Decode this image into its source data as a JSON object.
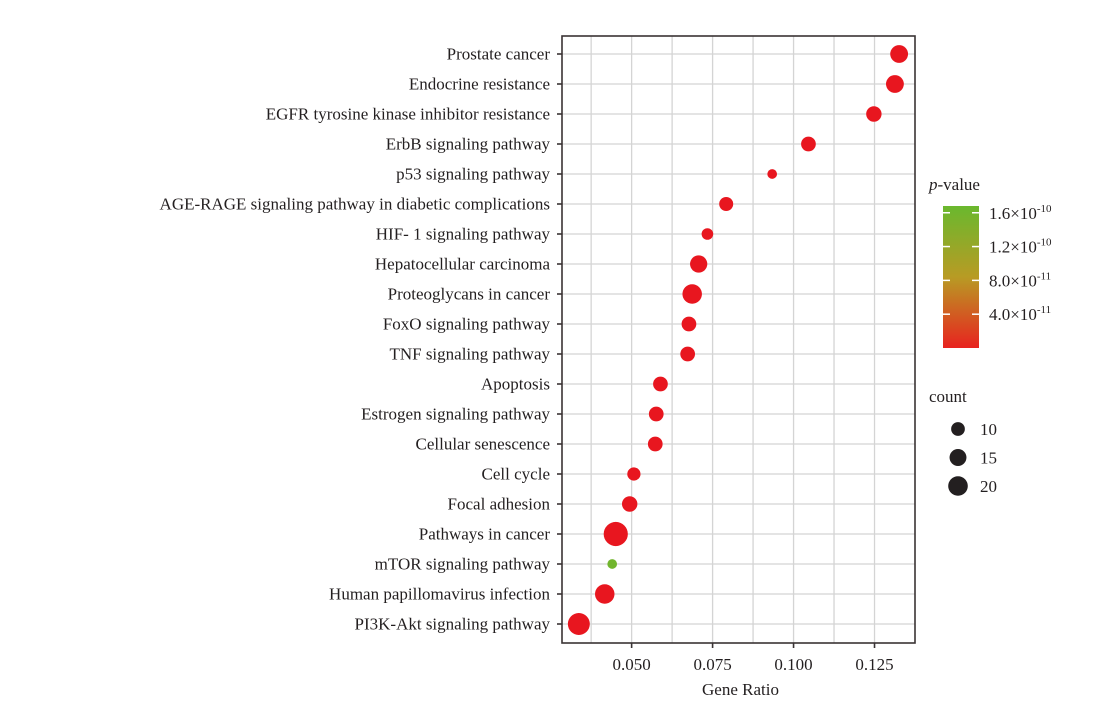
{
  "chart_data": {
    "type": "scatter",
    "subtype": "dot-plot",
    "title": "",
    "xlabel": "Gene Ratio",
    "ylabel": "",
    "xlim": [
      0.0285,
      0.1375
    ],
    "x_ticks": [
      0.05,
      0.075,
      0.1,
      0.125
    ],
    "x_tick_labels": [
      "0.050",
      "0.075",
      "0.100",
      "0.125"
    ],
    "x_minor_gridlines": [
      0.0375,
      0.0625,
      0.0875,
      0.1125
    ],
    "grid": true,
    "categories": [
      "Prostate cancer",
      "Endocrine resistance",
      "EGFR tyrosine kinase inhibitor resistance",
      "ErbB signaling pathway",
      "p53 signaling pathway",
      "AGE-RAGE signaling pathway in diabetic complications",
      "HIF- 1 signaling pathway",
      "Hepatocellular carcinoma",
      "Proteoglycans in cancer",
      "FoxO signaling pathway",
      "TNF signaling pathway",
      "Apoptosis",
      "Estrogen signaling pathway",
      "Cellular senescence",
      "Cell cycle",
      "Focal adhesion",
      "Pathways in cancer",
      "mTOR signaling pathway",
      "Human papillomavirus infection",
      "PI3K-Akt signaling pathway"
    ],
    "points": [
      {
        "term": "Prostate cancer",
        "gene_ratio": 0.1326,
        "count": 16,
        "p_value": 1e-13
      },
      {
        "term": "Endocrine resistance",
        "gene_ratio": 0.1313,
        "count": 16,
        "p_value": 1e-13
      },
      {
        "term": "EGFR tyrosine kinase inhibitor resistance",
        "gene_ratio": 0.1248,
        "count": 12,
        "p_value": 1e-13
      },
      {
        "term": "ErbB signaling pathway",
        "gene_ratio": 0.1046,
        "count": 11,
        "p_value": 1e-13
      },
      {
        "term": "p53 signaling pathway",
        "gene_ratio": 0.0934,
        "count": 5,
        "p_value": 1e-13
      },
      {
        "term": "AGE-RAGE signaling pathway in diabetic complications",
        "gene_ratio": 0.0792,
        "count": 10,
        "p_value": 1e-13
      },
      {
        "term": "HIF- 1 signaling pathway",
        "gene_ratio": 0.0734,
        "count": 7,
        "p_value": 1e-13
      },
      {
        "term": "Hepatocellular carcinoma",
        "gene_ratio": 0.0707,
        "count": 15,
        "p_value": 1e-13
      },
      {
        "term": "Proteoglycans in cancer",
        "gene_ratio": 0.0687,
        "count": 19,
        "p_value": 1e-13
      },
      {
        "term": "FoxO signaling pathway",
        "gene_ratio": 0.0677,
        "count": 11,
        "p_value": 1e-13
      },
      {
        "term": "TNF signaling pathway",
        "gene_ratio": 0.0673,
        "count": 11,
        "p_value": 1e-13
      },
      {
        "term": "Apoptosis",
        "gene_ratio": 0.0589,
        "count": 11,
        "p_value": 1e-13
      },
      {
        "term": "Estrogen signaling pathway",
        "gene_ratio": 0.0576,
        "count": 11,
        "p_value": 1e-13
      },
      {
        "term": "Cellular senescence",
        "gene_ratio": 0.0573,
        "count": 11,
        "p_value": 1e-13
      },
      {
        "term": "Cell cycle",
        "gene_ratio": 0.0507,
        "count": 9,
        "p_value": 1e-13
      },
      {
        "term": "Focal adhesion",
        "gene_ratio": 0.0494,
        "count": 12,
        "p_value": 1e-13
      },
      {
        "term": "Pathways in cancer",
        "gene_ratio": 0.0451,
        "count": 29,
        "p_value": 1e-13
      },
      {
        "term": "mTOR signaling pathway",
        "gene_ratio": 0.044,
        "count": 5,
        "p_value": 1.6e-10
      },
      {
        "term": "Human papillomavirus infection",
        "gene_ratio": 0.0417,
        "count": 19,
        "p_value": 1e-13
      },
      {
        "term": "PI3K-Akt signaling pathway",
        "gene_ratio": 0.0337,
        "count": 24,
        "p_value": 1e-13
      }
    ],
    "color_legend": {
      "title_italic": "p",
      "title_rest": "-value",
      "range": [
        0,
        1.68e-10
      ],
      "low_color": "#e8231f",
      "mid_color": "#b89b24",
      "high_color": "#6ab82e",
      "ticks": [
        {
          "value": 1.6e-10,
          "mantissa": "1.6",
          "exponent": "-10"
        },
        {
          "value": 1.2e-10,
          "mantissa": "1.2",
          "exponent": "-10"
        },
        {
          "value": 8e-11,
          "mantissa": "8.0",
          "exponent": "-11"
        },
        {
          "value": 4e-11,
          "mantissa": "4.0",
          "exponent": "-11"
        }
      ],
      "times_sign": "×10",
      "placement": "right"
    },
    "size_legend": {
      "title": "count",
      "entries": [
        {
          "value": 10,
          "label": "10"
        },
        {
          "value": 15,
          "label": "15"
        },
        {
          "value": 20,
          "label": "20"
        }
      ],
      "color": "#231f20",
      "placement": "right"
    },
    "point_color_red": "#e8161f"
  }
}
